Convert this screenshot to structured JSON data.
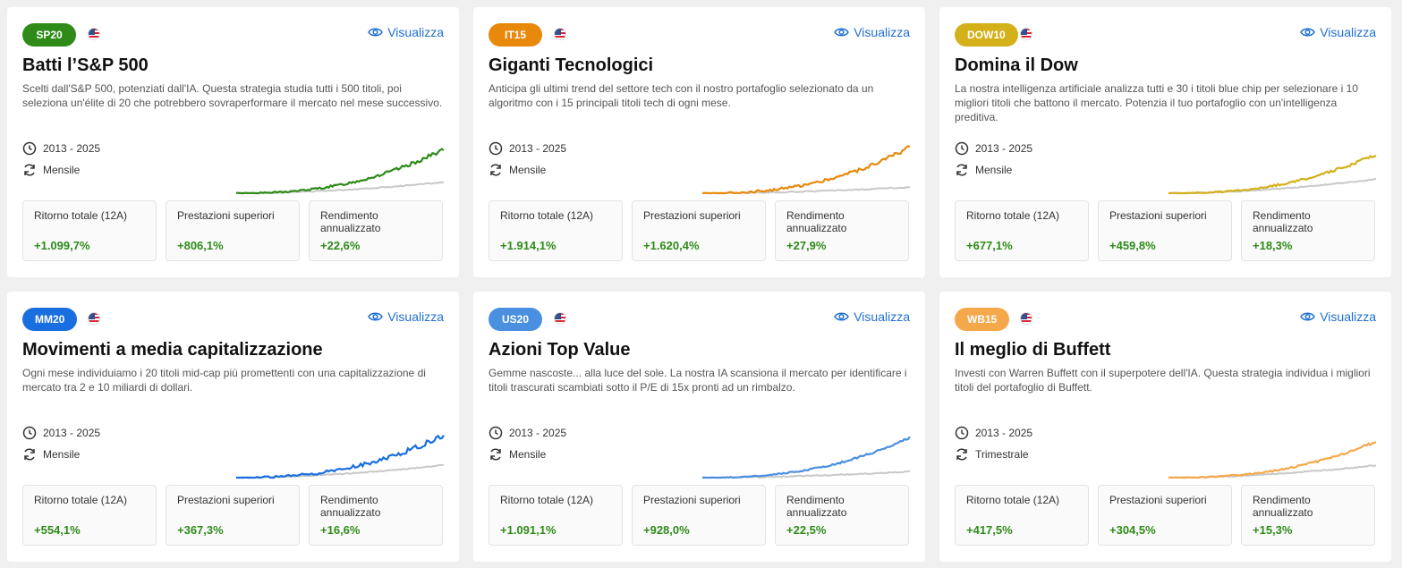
{
  "view_label": "Visualizza",
  "colors": {
    "positive": "#2e8b18",
    "link": "#1f6fd0",
    "benchmark": "#c8c8c8"
  },
  "cards": [
    {
      "badge": "SP20",
      "badge_color": "#2e8b18",
      "title": "Batti l’S&P 500",
      "description": "Scelti dall'S&P 500, potenziati dall'IA. Questa strategia studia tutti i 500 titoli, poi seleziona un'élite di 20 che potrebbero sovraperformare il mercato nel mese successivo.",
      "period": "2013 - 2025",
      "frequency": "Mensile",
      "line_color": "#2e8b18",
      "stats": [
        {
          "label": "Ritorno totale (12A)",
          "value": "+1.099,7%"
        },
        {
          "label": "Prestazioni superiori",
          "value": "+806,1%"
        },
        {
          "label": "Rendimento annualizzato",
          "value": "+22,6%"
        }
      ]
    },
    {
      "badge": "IT15",
      "badge_color": "#e8890c",
      "title": "Giganti Tecnologici",
      "description": "Anticipa gli ultimi trend del settore tech con il nostro portafoglio selezionato da un algoritmo con i 15 principali titoli tech di ogni mese.",
      "period": "2013 - 2025",
      "frequency": "Mensile",
      "line_color": "#e8890c",
      "stats": [
        {
          "label": "Ritorno totale (12A)",
          "value": "+1.914,1%"
        },
        {
          "label": "Prestazioni superiori",
          "value": "+1.620,4%"
        },
        {
          "label": "Rendimento annualizzato",
          "value": "+27,9%"
        }
      ]
    },
    {
      "badge": "DOW10",
      "badge_color": "#d4b01a",
      "title": "Domina il Dow",
      "description": "La nostra intelligenza artificiale analizza tutti e 30 i titoli blue chip per selezionare i 10 migliori titoli che battono il mercato. Potenzia il tuo portafoglio con un'intelligenza preditiva.",
      "period": "2013 - 2025",
      "frequency": "Mensile",
      "line_color": "#d4b01a",
      "stats": [
        {
          "label": "Ritorno totale (12A)",
          "value": "+677,1%"
        },
        {
          "label": "Prestazioni superiori",
          "value": "+459,8%"
        },
        {
          "label": "Rendimento annualizzato",
          "value": "+18,3%"
        }
      ]
    },
    {
      "badge": "MM20",
      "badge_color": "#1a6fe0",
      "title": "Movimenti a media capitalizzazione",
      "description": "Ogni mese individuiamo i 20 titoli mid-cap più promettenti con una capitalizzazione di mercato tra 2 e 10 miliardi di dollari.",
      "period": "2013 - 2025",
      "frequency": "Mensile",
      "line_color": "#1a6fe0",
      "stats": [
        {
          "label": "Ritorno totale (12A)",
          "value": "+554,1%"
        },
        {
          "label": "Prestazioni superiori",
          "value": "+367,3%"
        },
        {
          "label": "Rendimento annualizzato",
          "value": "+16,6%"
        }
      ]
    },
    {
      "badge": "US20",
      "badge_color": "#4a8fe0",
      "title": "Azioni Top Value",
      "description": "Gemme nascoste... alla luce del sole. La nostra IA scansiona il mercato per identificare i titoli trascurati scambiati sotto il P/E di 15x pronti ad un rimbalzo.",
      "period": "2013 - 2025",
      "frequency": "Mensile",
      "line_color": "#4a8fe0",
      "stats": [
        {
          "label": "Ritorno totale (12A)",
          "value": "+1.091,1%"
        },
        {
          "label": "Prestazioni superiori",
          "value": "+928,0%"
        },
        {
          "label": "Rendimento annualizzato",
          "value": "+22,5%"
        }
      ]
    },
    {
      "badge": "WB15",
      "badge_color": "#f5a84a",
      "title": "Il meglio di Buffett",
      "description": "Investi con Warren Buffett con il superpotere dell'IA. Questa strategia individua i migliori titoli del portafoglio di Buffett.",
      "period": "2013 - 2025",
      "frequency": "Trimestrale",
      "line_color": "#f5a84a",
      "stats": [
        {
          "label": "Ritorno totale (12A)",
          "value": "+417,5%"
        },
        {
          "label": "Prestazioni superiori",
          "value": "+304,5%"
        },
        {
          "label": "Rendimento annualizzato",
          "value": "+15,3%"
        }
      ]
    }
  ]
}
